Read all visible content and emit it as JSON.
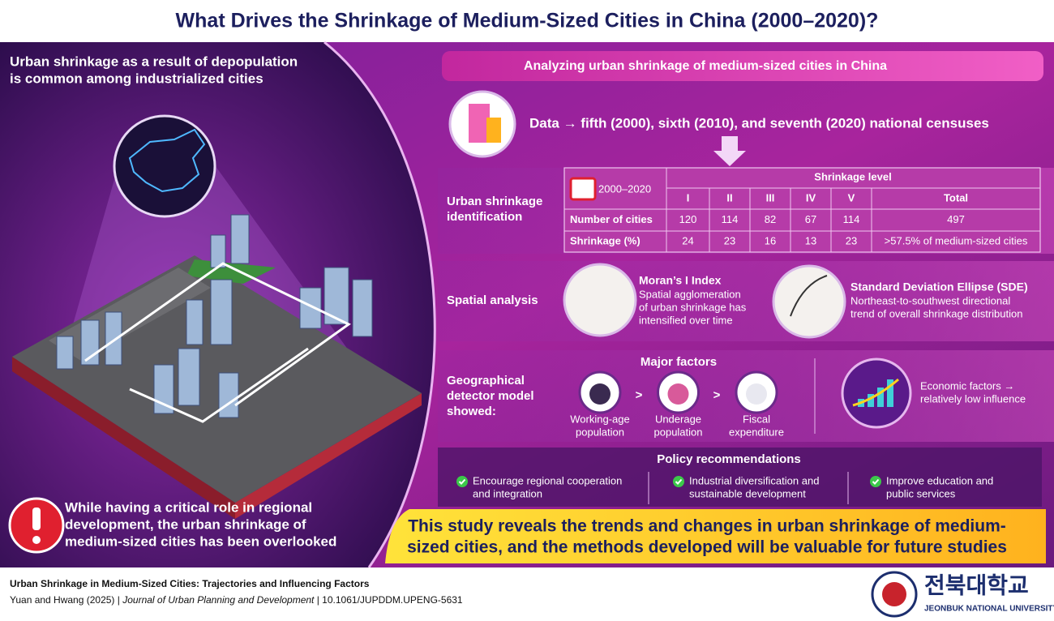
{
  "title": "What Drives the Shrinkage of Medium-Sized Cities in China (2000–2020)?",
  "left": {
    "top_text": [
      "Urban shrinkage as a result of depopulation",
      "is common among industrialized cities"
    ],
    "bottom_text": [
      "While having a critical role in regional",
      "development, the urban shrinkage of",
      "medium-sized cities has been overlooked"
    ]
  },
  "banner": "Analyzing urban shrinkage of medium-sized cities in China",
  "data_line": "Data → fifth (2000), sixth (2010), and seventh (2020) national censuses",
  "identification": {
    "label": [
      "Urban shrinkage",
      "identification"
    ],
    "table": {
      "period": "2000–2020",
      "header": "Shrinkage level",
      "columns": [
        "I",
        "II",
        "III",
        "IV",
        "V",
        "Total"
      ],
      "rows": [
        {
          "label": "Number of cities",
          "cells": [
            120,
            114,
            82,
            67,
            114,
            497
          ]
        },
        {
          "label": "Shrinkage (%)",
          "cells": [
            24,
            23,
            16,
            13,
            23,
            ">57.5% of medium-sized cities"
          ]
        }
      ]
    }
  },
  "spatial": {
    "label": "Spatial analysis",
    "items": [
      {
        "title": "Moran’s I Index",
        "text": [
          "Spatial agglomeration",
          "of urban shrinkage has",
          "intensified over time"
        ]
      },
      {
        "title": "Standard Deviation Ellipse (SDE)",
        "text": [
          "Northeast-to-southwest directional",
          "trend of overall shrinkage distribution"
        ]
      }
    ]
  },
  "geodetector": {
    "label": [
      "Geographical",
      "detector model",
      "showed:"
    ],
    "factors_title": "Major factors",
    "factors": [
      [
        "Working-age",
        "population"
      ],
      [
        "Underage",
        "population"
      ],
      [
        "Fiscal",
        "expenditure"
      ]
    ],
    "comparators": [
      ">",
      ">"
    ],
    "economic": [
      "Economic factors →",
      "relatively low influence"
    ]
  },
  "policy": {
    "title": "Policy recommendations",
    "items": [
      [
        "Encourage regional cooperation",
        "and integration"
      ],
      [
        "Industrial diversification and",
        "sustainable development"
      ],
      [
        "Improve education and",
        "public services"
      ]
    ]
  },
  "conclusion": [
    "This study reveals the trends and changes in urban shrinkage of medium-",
    "sized cities, and the methods developed will be valuable for future studies"
  ],
  "footer": {
    "article_title": "Urban Shrinkage in Medium-Sized Cities: Trajectories and Influencing Factors",
    "authors": "Yuan and Hwang (2025) |",
    "journal": "Journal of Urban Planning and Development",
    "doi": "| 10.1061/JUPDDM.UPENG-5631",
    "university": "전북대학교",
    "university_en": "JEONBUK NATIONAL UNIVERSITY"
  }
}
